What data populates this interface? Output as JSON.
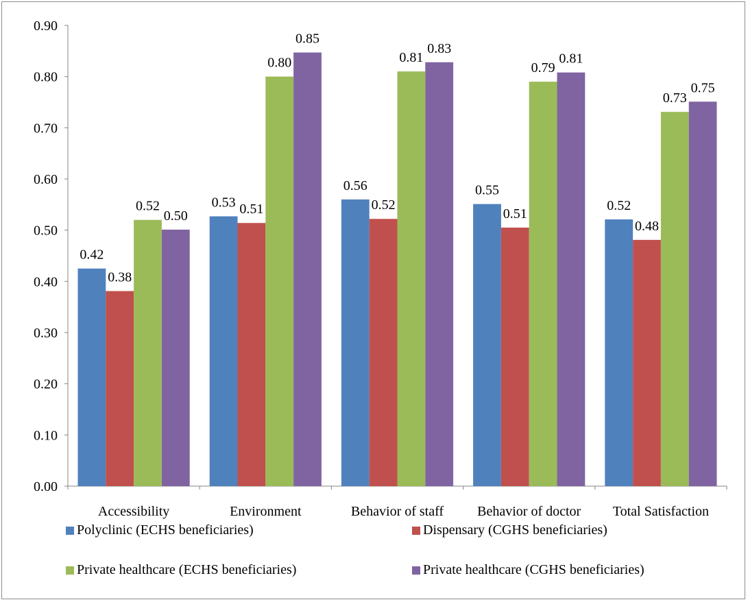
{
  "chart_data": {
    "type": "bar",
    "categories": [
      "Accessibility",
      "Environment",
      "Behavior of staff",
      "Behavior of doctor",
      "Total Satisfaction"
    ],
    "series": [
      {
        "name": "Polyclinic (ECHS beneficiaries)",
        "color": "#4f81bd",
        "values": [
          0.425,
          0.527,
          0.56,
          0.551,
          0.521
        ],
        "labels": [
          "0.42",
          "0.53",
          "0.56",
          "0.55",
          "0.52"
        ]
      },
      {
        "name": "Dispensary (CGHS beneficiaries)",
        "color": "#c0504d",
        "values": [
          0.381,
          0.514,
          0.522,
          0.505,
          0.481
        ],
        "labels": [
          "0.38",
          "0.51",
          "0.52",
          "0.51",
          "0.48"
        ]
      },
      {
        "name": "Private healthcare (ECHS beneficiaries)",
        "color": "#9bbb59",
        "values": [
          0.52,
          0.8,
          0.81,
          0.79,
          0.731
        ],
        "labels": [
          "0.52",
          "0.80",
          "0.81",
          "0.79",
          "0.73"
        ]
      },
      {
        "name": "Private healthcare (CGHS beneficiaries)",
        "color": "#8064a2",
        "values": [
          0.501,
          0.847,
          0.828,
          0.808,
          0.751
        ],
        "labels": [
          "0.50",
          "0.85",
          "0.83",
          "0.81",
          "0.75"
        ]
      }
    ],
    "yticks": [
      "0.00",
      "0.10",
      "0.20",
      "0.30",
      "0.40",
      "0.50",
      "0.60",
      "0.70",
      "0.80",
      "0.90"
    ],
    "ylim": [
      0,
      0.9
    ],
    "grid": false,
    "legend_position": "bottom"
  }
}
